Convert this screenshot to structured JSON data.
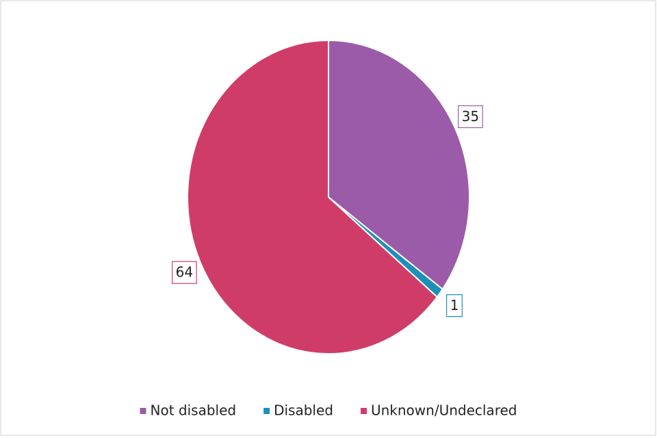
{
  "chart_data": {
    "type": "pie",
    "categories": [
      "Not disabled",
      "Disabled",
      "Unknown/Undeclared"
    ],
    "values": [
      35,
      1,
      64
    ],
    "colors": [
      "#9b5ba8",
      "#1b90b9",
      "#d03c68"
    ],
    "legend": "bottom"
  }
}
